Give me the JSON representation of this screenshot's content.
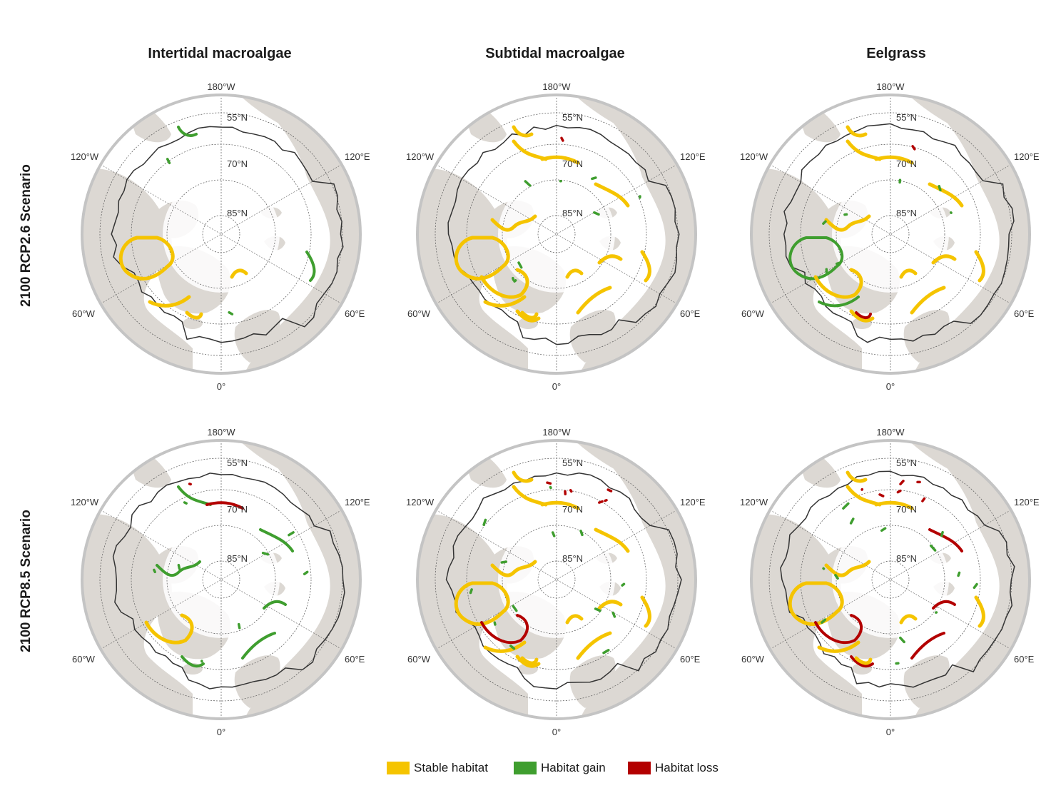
{
  "column_titles": [
    "Intertidal macroalgae",
    "Subtidal macroalgae",
    "Eelgrass"
  ],
  "row_titles": [
    "2100 RCP2.6 Scenario",
    "2100 RCP8.5 Scenario"
  ],
  "map_labels": {
    "top": "180°W",
    "bottom": "0°",
    "upper_left": "120°W",
    "upper_right": "120°E",
    "lower_left": "60°W",
    "lower_right": "60°E",
    "lat_55": "55°N",
    "lat_70": "70°N",
    "lat_85": "85°N"
  },
  "legend": [
    {
      "label": "Stable habitat",
      "color": "#f5c400"
    },
    {
      "label": "Habitat gain",
      "color": "#3f9e2f"
    },
    {
      "label": "Habitat loss",
      "color": "#b30000"
    }
  ],
  "colors": {
    "land": "#dcd8d3",
    "ocean": "#ffffff",
    "frame": "#c4c4c4",
    "boundary": "#333333"
  },
  "panels": [
    {
      "column": "Intertidal macroalgae",
      "scenario": "2100 RCP2.6 Scenario",
      "stable": 0.35,
      "gain": 0.12,
      "loss": 0.02
    },
    {
      "column": "Subtidal macroalgae",
      "scenario": "2100 RCP2.6 Scenario",
      "stable": 0.95,
      "gain": 0.55,
      "loss": 0.06
    },
    {
      "column": "Eelgrass",
      "scenario": "2100 RCP2.6 Scenario",
      "stable": 0.85,
      "gain": 0.5,
      "loss": 0.06
    },
    {
      "column": "Intertidal macroalgae",
      "scenario": "2100 RCP8.5 Scenario",
      "stable": 0.35,
      "gain": 0.55,
      "loss": 0.08
    },
    {
      "column": "Subtidal macroalgae",
      "scenario": "2100 RCP8.5 Scenario",
      "stable": 0.95,
      "gain": 0.9,
      "loss": 0.4
    },
    {
      "column": "Eelgrass",
      "scenario": "2100 RCP8.5 Scenario",
      "stable": 0.85,
      "gain": 0.9,
      "loss": 0.45
    }
  ]
}
